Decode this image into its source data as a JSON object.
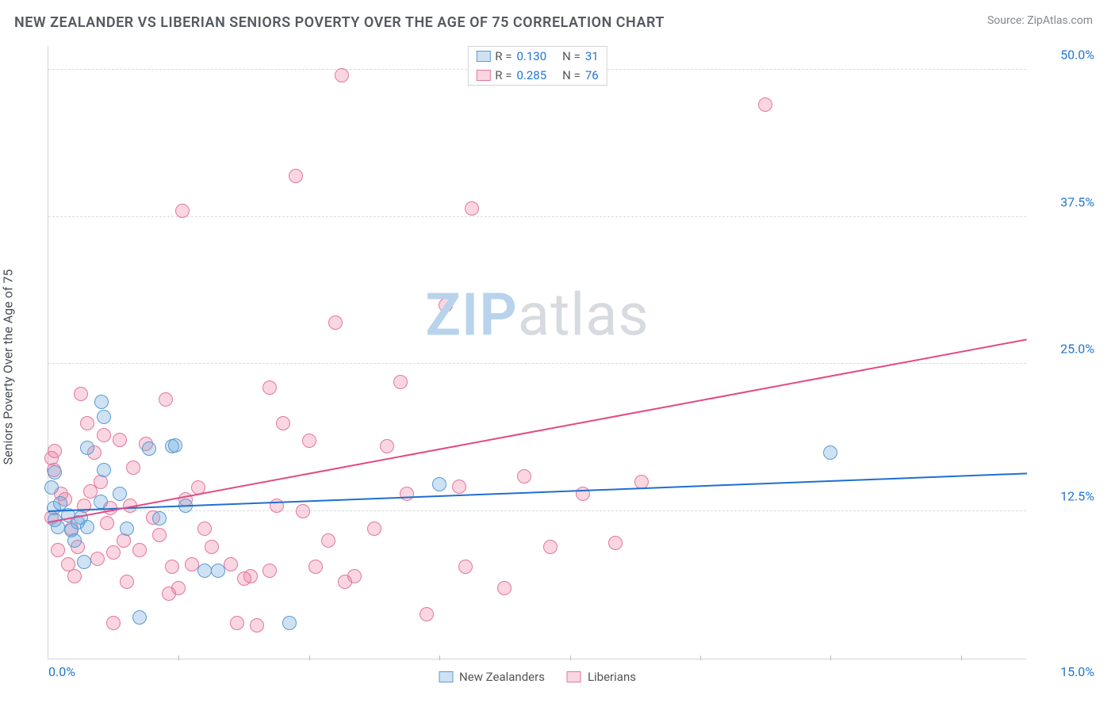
{
  "title": "NEW ZEALANDER VS LIBERIAN SENIORS POVERTY OVER THE AGE OF 75 CORRELATION CHART",
  "source": "Source: ZipAtlas.com",
  "yaxis_label": "Seniors Poverty Over the Age of 75",
  "watermark_a": "ZIP",
  "watermark_b": "atlas",
  "watermark_color_a": "#b9d3ec",
  "watermark_color_b": "#d7dbdf",
  "chart": {
    "type": "scatter",
    "xlim": [
      0,
      15
    ],
    "ylim": [
      0,
      52
    ],
    "x_ticks_minor": [
      2,
      4,
      6,
      8,
      10,
      12,
      14
    ],
    "x_ticks_label": [
      {
        "v": 0,
        "label": "0.0%",
        "align": "left"
      },
      {
        "v": 15,
        "label": "15.0%",
        "align": "right"
      }
    ],
    "y_grid": [
      12.5,
      25.0,
      37.5,
      50.0
    ],
    "y_ticks_label": [
      "12.5%",
      "25.0%",
      "37.5%",
      "50.0%"
    ],
    "grid_color": "#d8dcdf",
    "axis_color": "#d0d4d8",
    "tick_label_color": "#2176d2",
    "marker_radius": 9,
    "marker_stroke": 1
  },
  "series": [
    {
      "key": "nz",
      "label": "New Zealanders",
      "fill": "rgba(114,172,222,0.35)",
      "stroke": "#5a9bd5",
      "trend_color": "#1f6fd0",
      "trend": {
        "x1": 0,
        "y1": 12.6,
        "x2": 15,
        "y2": 15.8
      },
      "R": "0.130",
      "N": "31",
      "points": [
        [
          0.05,
          14.5
        ],
        [
          0.08,
          12.8
        ],
        [
          0.1,
          15.8
        ],
        [
          0.15,
          11.2
        ],
        [
          0.18,
          13.2
        ],
        [
          0.3,
          12.2
        ],
        [
          0.35,
          10.9
        ],
        [
          0.4,
          10.0
        ],
        [
          0.45,
          11.6
        ],
        [
          0.5,
          12.0
        ],
        [
          0.55,
          8.2
        ],
        [
          0.6,
          17.9
        ],
        [
          0.6,
          11.2
        ],
        [
          0.8,
          13.3
        ],
        [
          0.82,
          21.8
        ],
        [
          0.85,
          16.0
        ],
        [
          0.85,
          20.5
        ],
        [
          1.1,
          14.0
        ],
        [
          1.2,
          11.0
        ],
        [
          1.4,
          3.5
        ],
        [
          1.55,
          17.8
        ],
        [
          1.7,
          11.9
        ],
        [
          1.9,
          18.0
        ],
        [
          1.95,
          18.1
        ],
        [
          2.1,
          13.0
        ],
        [
          2.4,
          7.5
        ],
        [
          2.6,
          7.5
        ],
        [
          3.7,
          3.0
        ],
        [
          6.0,
          14.8
        ],
        [
          12.0,
          17.5
        ],
        [
          0.1,
          11.8
        ]
      ]
    },
    {
      "key": "lib",
      "label": "Liberians",
      "fill": "rgba(235,120,155,0.30)",
      "stroke": "#e3779c",
      "trend_color": "#e24a84",
      "trend": {
        "x1": 0,
        "y1": 11.7,
        "x2": 15,
        "y2": 27.2
      },
      "R": "0.285",
      "N": "76",
      "points": [
        [
          0.05,
          17.0
        ],
        [
          0.05,
          12.0
        ],
        [
          0.08,
          16.0
        ],
        [
          0.1,
          17.6
        ],
        [
          0.15,
          9.2
        ],
        [
          0.2,
          14.0
        ],
        [
          0.25,
          13.5
        ],
        [
          0.3,
          8.0
        ],
        [
          0.35,
          11.0
        ],
        [
          0.4,
          7.0
        ],
        [
          0.45,
          9.5
        ],
        [
          0.5,
          22.5
        ],
        [
          0.55,
          13.0
        ],
        [
          0.6,
          20.0
        ],
        [
          0.65,
          14.2
        ],
        [
          0.7,
          17.5
        ],
        [
          0.75,
          8.5
        ],
        [
          0.8,
          15.0
        ],
        [
          0.85,
          19.0
        ],
        [
          0.9,
          11.5
        ],
        [
          0.95,
          12.8
        ],
        [
          1.0,
          9.0
        ],
        [
          1.0,
          3.0
        ],
        [
          1.1,
          18.6
        ],
        [
          1.15,
          10.0
        ],
        [
          1.2,
          6.5
        ],
        [
          1.25,
          13.0
        ],
        [
          1.3,
          16.2
        ],
        [
          1.4,
          9.2
        ],
        [
          1.5,
          18.2
        ],
        [
          1.6,
          12.0
        ],
        [
          1.7,
          10.5
        ],
        [
          1.8,
          22.0
        ],
        [
          1.85,
          5.5
        ],
        [
          1.9,
          7.8
        ],
        [
          2.0,
          6.0
        ],
        [
          2.05,
          38.0
        ],
        [
          2.1,
          13.5
        ],
        [
          2.2,
          8.0
        ],
        [
          2.3,
          14.5
        ],
        [
          2.4,
          11.0
        ],
        [
          2.5,
          9.5
        ],
        [
          2.8,
          8.0
        ],
        [
          2.9,
          3.0
        ],
        [
          3.0,
          6.8
        ],
        [
          3.1,
          7.0
        ],
        [
          3.2,
          2.8
        ],
        [
          3.4,
          7.5
        ],
        [
          3.4,
          23.0
        ],
        [
          3.5,
          13.0
        ],
        [
          3.6,
          20.0
        ],
        [
          3.8,
          41.0
        ],
        [
          3.9,
          12.5
        ],
        [
          4.0,
          18.5
        ],
        [
          4.1,
          7.8
        ],
        [
          4.3,
          10.0
        ],
        [
          4.4,
          28.5
        ],
        [
          4.5,
          49.5
        ],
        [
          4.55,
          6.5
        ],
        [
          4.7,
          7.0
        ],
        [
          5.0,
          11.0
        ],
        [
          5.2,
          18.0
        ],
        [
          5.4,
          23.5
        ],
        [
          5.5,
          14.0
        ],
        [
          5.8,
          3.8
        ],
        [
          6.1,
          30.0
        ],
        [
          6.3,
          14.6
        ],
        [
          6.4,
          7.8
        ],
        [
          6.5,
          38.2
        ],
        [
          7.0,
          6.0
        ],
        [
          7.3,
          15.5
        ],
        [
          7.7,
          9.5
        ],
        [
          8.2,
          14.0
        ],
        [
          8.7,
          9.8
        ],
        [
          9.1,
          15.0
        ],
        [
          11.0,
          47.0
        ]
      ]
    }
  ],
  "legend_top_labels": {
    "R": "R =",
    "N": "N ="
  },
  "legend_bottom": [
    "New Zealanders",
    "Liberians"
  ]
}
